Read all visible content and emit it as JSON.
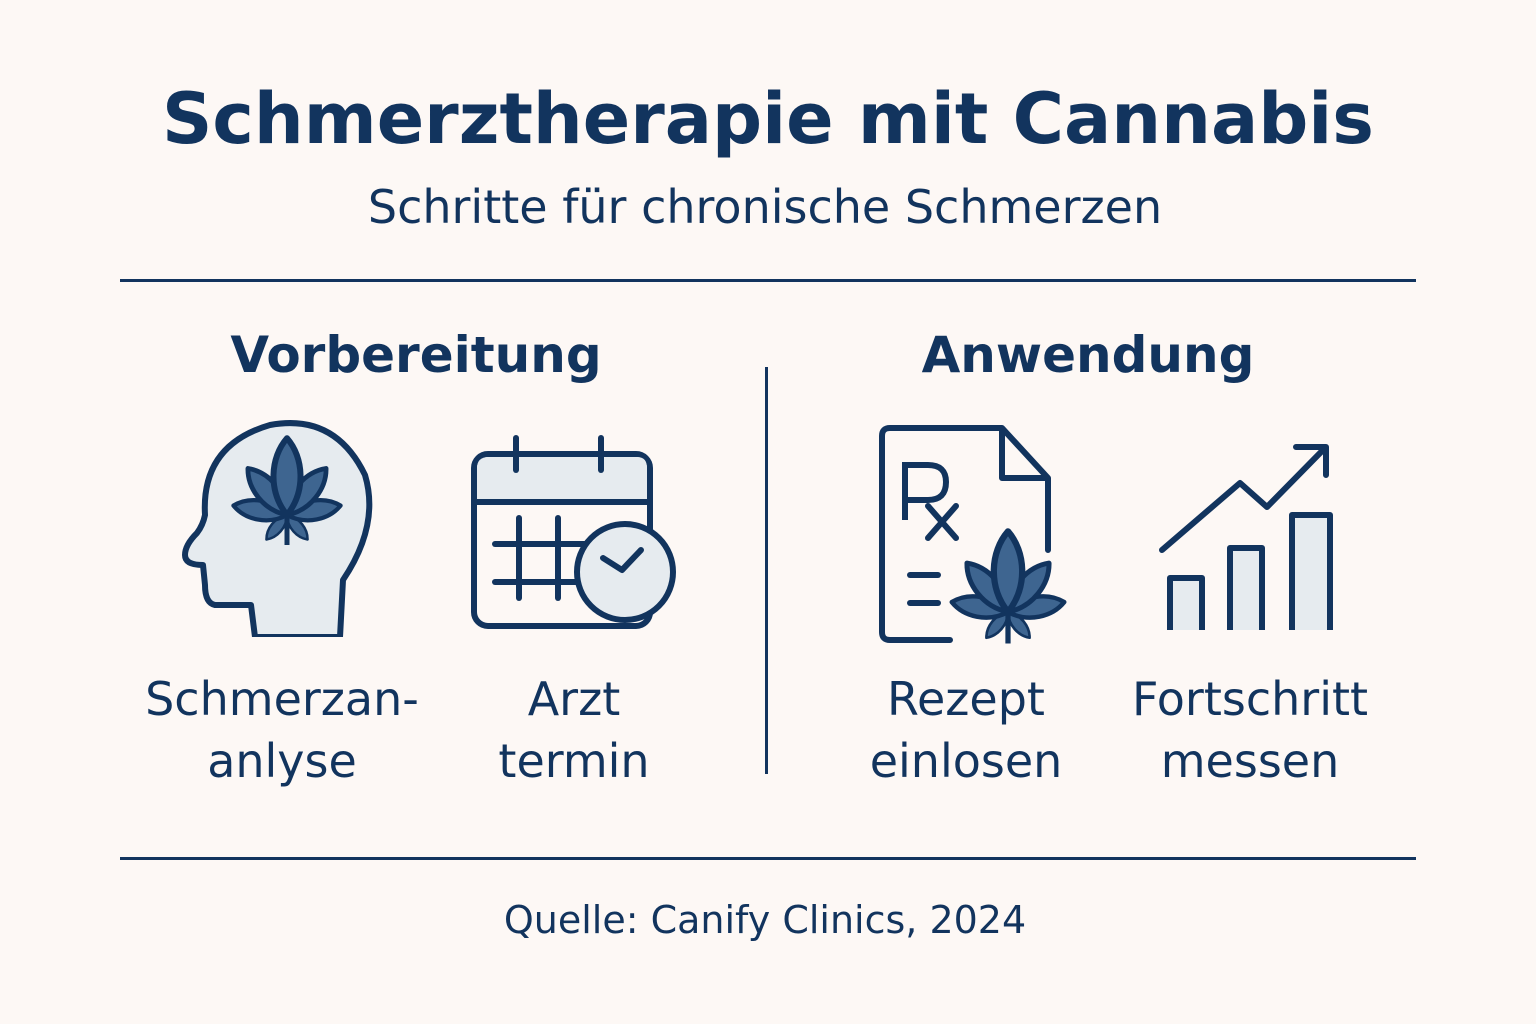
{
  "header": {
    "title": "Schmerztherapie mit Cannabis",
    "subtitle": "Schritte für chronische Schmerzen"
  },
  "colors": {
    "background": "#fdf8f5",
    "primary": "#12345e",
    "leaf": "#3e6590",
    "icon_fill": "#e6ebef"
  },
  "sections": [
    {
      "heading": "Vorbereitung",
      "steps": [
        {
          "icon": "head-cannabis-icon",
          "label_line1": "Schmerzan-",
          "label_line2": "anlyse"
        },
        {
          "icon": "calendar-clock-icon",
          "label_line1": "Arzt",
          "label_line2": "termin"
        }
      ]
    },
    {
      "heading": "Anwendung",
      "steps": [
        {
          "icon": "prescription-cannabis-icon",
          "label_line1": "Rezept",
          "label_line2": "einlosen"
        },
        {
          "icon": "growth-chart-icon",
          "label_line1": "Fortschritt",
          "label_line2": "messen"
        }
      ]
    }
  ],
  "footer": {
    "source": "Quelle: Canify Clinics, 2024"
  }
}
